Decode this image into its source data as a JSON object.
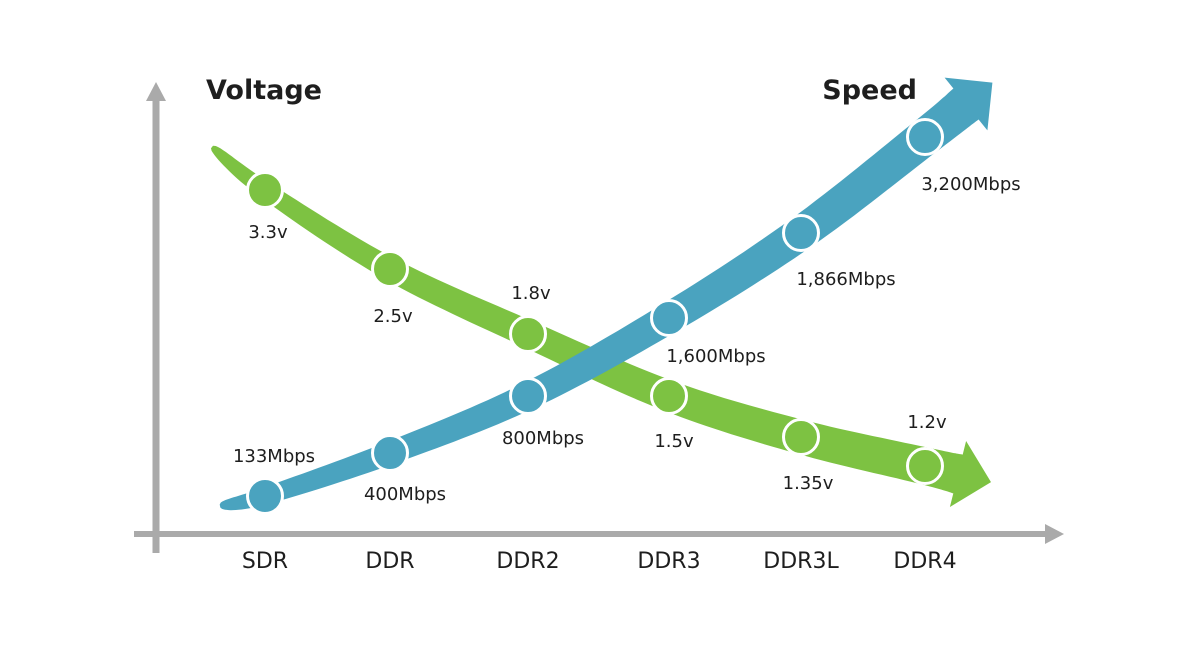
{
  "chart_data": {
    "type": "line",
    "categories": [
      "SDR",
      "DDR",
      "DDR2",
      "DDR3",
      "DDR3L",
      "DDR4"
    ],
    "series": [
      {
        "name": "Voltage",
        "values": [
          3.3,
          2.5,
          1.8,
          1.5,
          1.35,
          1.2
        ],
        "labels": [
          "3.3v",
          "2.5v",
          "1.8v",
          "1.5v",
          "1.35v",
          "1.2v"
        ],
        "color": "#7dc242"
      },
      {
        "name": "Speed",
        "values": [
          133,
          400,
          800,
          1600,
          1866,
          3200
        ],
        "labels": [
          "133Mbps",
          "400Mbps",
          "800Mbps",
          "1,600Mbps",
          "1,866Mbps",
          "3,200Mbps"
        ],
        "color": "#4aa3bf"
      }
    ],
    "axis_color": "#aaaaaa",
    "grid": false
  }
}
